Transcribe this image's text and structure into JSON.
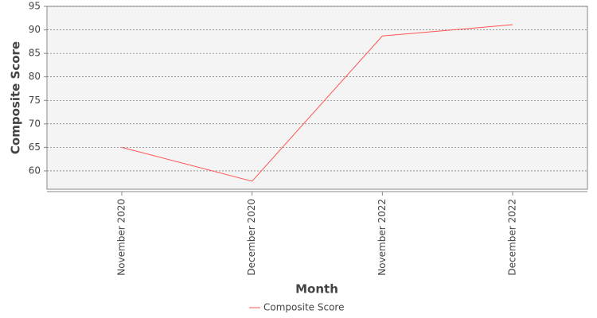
{
  "chart_data": {
    "type": "line",
    "x_label": "Month",
    "y_label": "Composite Score",
    "categories": [
      "November 2020",
      "December 2020",
      "November 2022",
      "December 2022"
    ],
    "series": [
      {
        "name": "Composite Score",
        "color": "#ff5555",
        "values": [
          65.0,
          57.8,
          88.7,
          91.1
        ]
      }
    ],
    "ylim": [
      56.1,
      95
    ],
    "yticks": [
      60,
      65,
      70,
      75,
      80,
      85,
      90,
      95
    ],
    "grid": true,
    "legend": "bottom"
  }
}
